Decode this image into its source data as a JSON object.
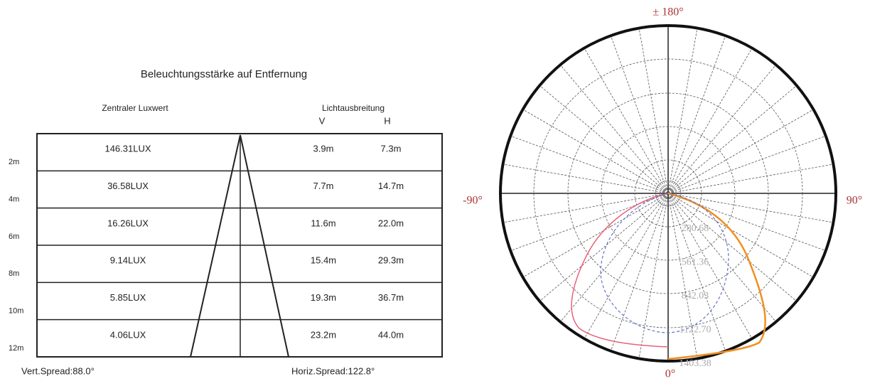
{
  "title": "Beleuchtungsstärke auf Entfernung",
  "columns": {
    "lux": "Zentraler Luxwert",
    "spread": "Lichtausbreitung",
    "v": "V",
    "h": "H"
  },
  "rows": [
    {
      "distance": "2m",
      "lux": "146.31LUX",
      "v": "3.9m",
      "h": "7.3m"
    },
    {
      "distance": "4m",
      "lux": "36.58LUX",
      "v": "7.7m",
      "h": "14.7m"
    },
    {
      "distance": "6m",
      "lux": "16.26LUX",
      "v": "11.6m",
      "h": "22.0m"
    },
    {
      "distance": "8m",
      "lux": "9.14LUX",
      "v": "15.4m",
      "h": "29.3m"
    },
    {
      "distance": "10m",
      "lux": "5.85LUX",
      "v": "19.3m",
      "h": "36.7m"
    },
    {
      "distance": "12m",
      "lux": "4.06LUX",
      "v": "23.2m",
      "h": "44.0m"
    }
  ],
  "footer": {
    "vert": "Vert.Spread:88.0°",
    "horiz": "Horiz.Spread:122.8°"
  },
  "polar": {
    "top": "± 180°",
    "left": "-90°",
    "right": "90°",
    "bottom": "0°",
    "ring_labels": [
      "280.68",
      "561.36",
      "842.03",
      "1122.70",
      "1403.38"
    ]
  }
}
